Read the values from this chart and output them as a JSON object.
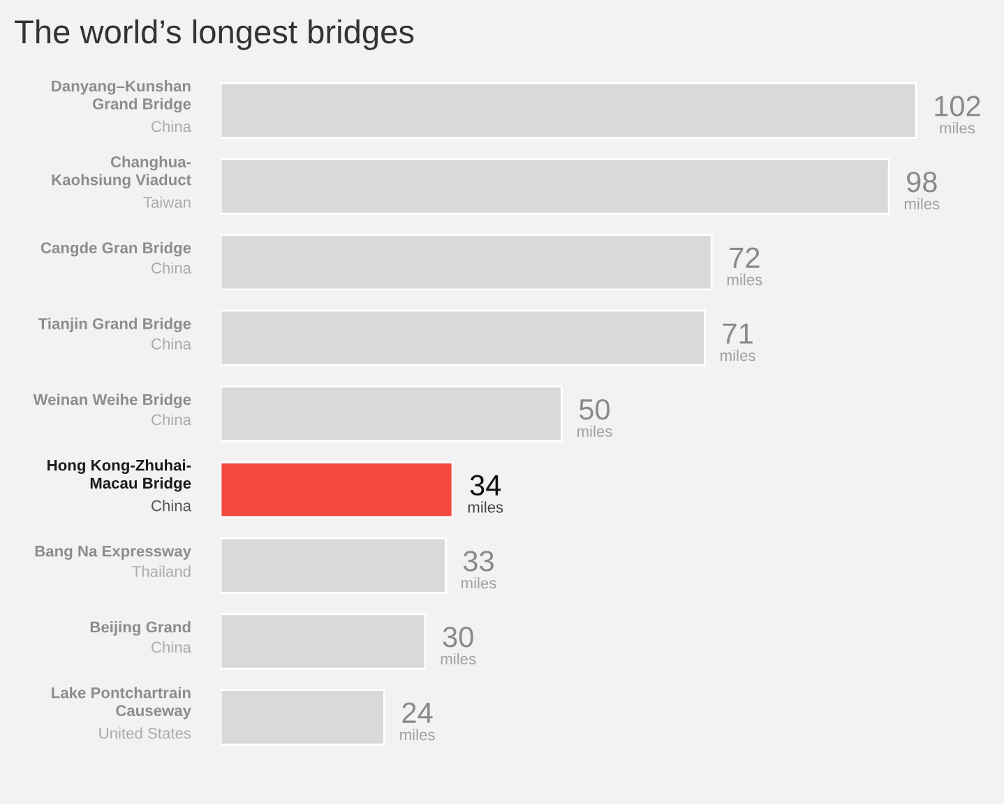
{
  "chart_data": {
    "type": "bar",
    "orientation": "horizontal",
    "title": "The world’s longest bridges",
    "categories": [
      "Danyang–Kunshan\nGrand Bridge\nChina",
      "Changhua-\nKaohsiung Viaduct\nTaiwan",
      "Cangde Gran Bridge\nChina",
      "Tianjin Grand Bridge\nChina",
      "Weinan Weihe Bridge\nChina",
      "Hong Kong-Zhuhai-\nMacau Bridge\nChina",
      "Bang Na Expressway\nThailand",
      "Beijing Grand\nChina",
      "Lake Pontchartrain\nCauseway\nUnited States"
    ],
    "values": [
      102,
      98,
      72,
      71,
      50,
      34,
      33,
      30,
      24
    ],
    "colors": [
      "#d9d9d9",
      "#d9d9d9",
      "#d9d9d9",
      "#d9d9d9",
      "#d9d9d9",
      "#f4493f",
      "#d9d9d9",
      "#d9d9d9",
      "#d9d9d9"
    ],
    "value_labels": [
      "102\nmiles",
      "98\nmiles",
      "72\nmiles",
      "71\nmiles",
      "50\nmiles",
      "34\nmiles",
      "33\nmiles",
      "30\nmiles",
      "24\nmiles"
    ],
    "tick_labels": "y"
  }
}
